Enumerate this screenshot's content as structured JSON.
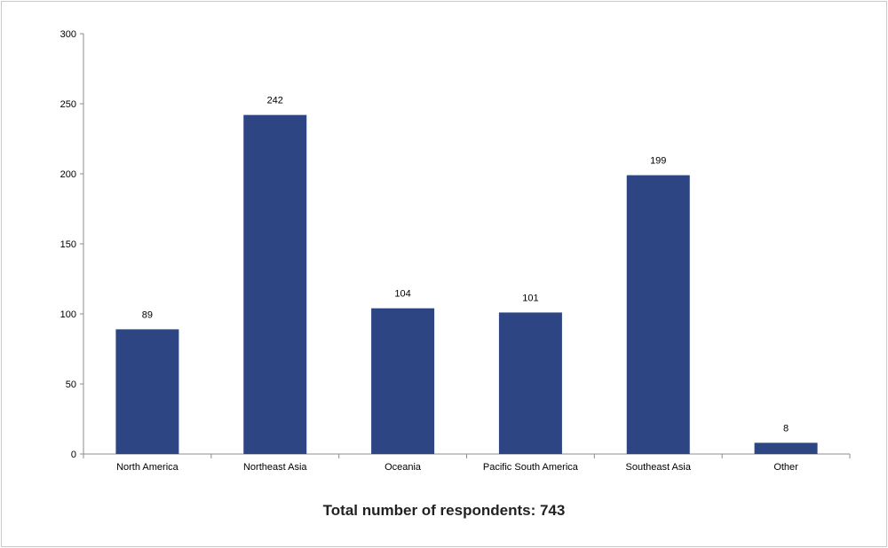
{
  "chart_data": {
    "type": "bar",
    "categories": [
      "North America",
      "Northeast Asia",
      "Oceania",
      "Pacific South America",
      "Southeast Asia",
      "Other"
    ],
    "values": [
      89,
      242,
      104,
      101,
      199,
      8
    ],
    "data_labels": [
      "89",
      "242",
      "104",
      "101",
      "199",
      "8"
    ],
    "ylim": [
      0,
      300
    ],
    "yticks": [
      0,
      50,
      100,
      150,
      200,
      250,
      300
    ],
    "ytick_labels": [
      "0",
      "50",
      "100",
      "150",
      "200",
      "250",
      "300"
    ],
    "grid": false,
    "legend": "none",
    "bar_color": "#2e4583",
    "title": "",
    "xlabel": "",
    "ylabel": "",
    "caption": "Total number of respondents: 743"
  }
}
